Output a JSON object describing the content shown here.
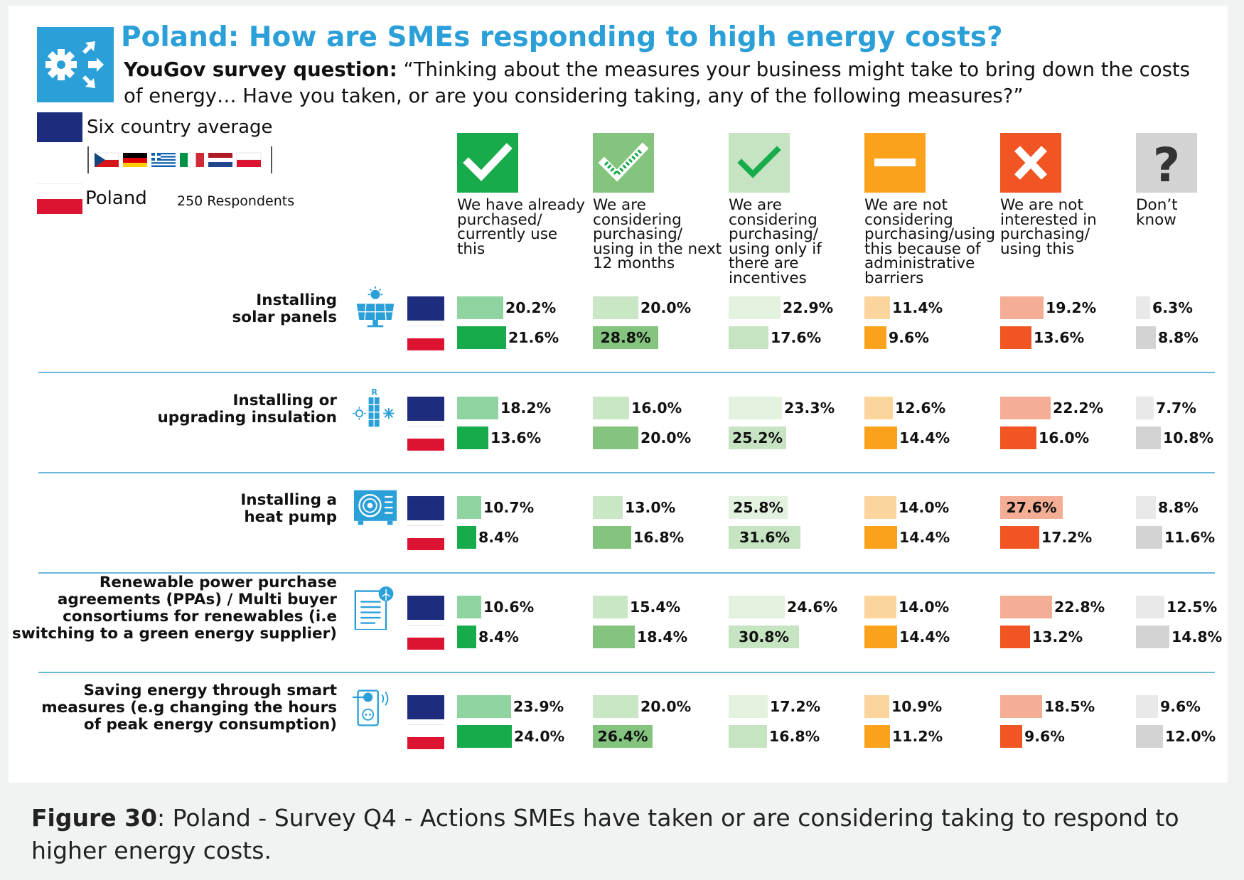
{
  "title": "Poland: How are SMEs responding to high energy costs?",
  "subtitle_bold": "YouGov survey question:",
  "subtitle_text": "“Thinking about the measures your business might take to bring down the costs of energy… Have you taken, or are you considering taking, any of the following measures?”",
  "legend": {
    "average_label": "Six country average",
    "poland_label": "Poland",
    "respondents": "250 Respondents",
    "flags": [
      "Czech Republic",
      "Germany",
      "Greece",
      "Italy",
      "Netherlands",
      "Poland"
    ]
  },
  "colors": {
    "accent": "#2a9fd8",
    "eu_blue": "#1d2c7c",
    "pl_red": "#dc1431",
    "separator": "#6bb7d8"
  },
  "caption_bold": "Figure 30",
  "caption_text": ": Poland - Survey Q4 - Actions SMEs have taken or are considering taking to respond to higher energy costs.",
  "chart_data": {
    "type": "bar",
    "unit": "%",
    "columns": [
      {
        "key": "already",
        "label_lines": [
          "We have already",
          "purchased/",
          "currently use",
          "this"
        ],
        "icon": "check-icon",
        "avg_color": "#8fd3a0",
        "pl_color": "#18ab4b"
      },
      {
        "key": "next12",
        "label_lines": [
          "We are",
          "considering",
          "purchasing/",
          "using in the next",
          "12 months"
        ],
        "icon": "dotted-check-icon",
        "avg_color": "#c9e6c5",
        "pl_color": "#84c47e"
      },
      {
        "key": "incentives",
        "label_lines": [
          "We are",
          "considering",
          "purchasing/",
          "using only if",
          "there are",
          "incentives"
        ],
        "icon": "light-check-icon",
        "avg_color": "#e3f1df",
        "pl_color": "#c6e4c2"
      },
      {
        "key": "admin",
        "label_lines": [
          "We are not",
          "considering",
          "purchasing/using",
          "this because of",
          "administrative",
          "barriers"
        ],
        "icon": "minus-icon",
        "avg_color": "#fbd59c",
        "pl_color": "#faa21b"
      },
      {
        "key": "notinterested",
        "label_lines": [
          "We are not",
          "interested in",
          "purchasing/",
          "using this"
        ],
        "icon": "cross-icon",
        "avg_color": "#f4ae96",
        "pl_color": "#f05523"
      },
      {
        "key": "dontknow",
        "label_lines": [
          "Don’t",
          "know"
        ],
        "icon": "question-icon",
        "avg_color": "#e9e9e9",
        "pl_color": "#d3d3d3"
      }
    ],
    "series": [
      {
        "name": "Six country average"
      },
      {
        "name": "Poland"
      }
    ],
    "categories": [
      {
        "label_lines": [
          "Installing",
          "solar panels"
        ],
        "icon": "solar-panel-icon",
        "avg": [
          20.2,
          20.0,
          22.9,
          11.4,
          19.2,
          6.3
        ],
        "pl": [
          21.6,
          28.8,
          17.6,
          9.6,
          13.6,
          8.8
        ],
        "avg_text": [
          "20.2%",
          "20.0%",
          "22.9%",
          "11.4%",
          "19.2%",
          "6.3%"
        ],
        "pl_text": [
          "21.6%",
          "28.8%",
          "17.6%",
          "9.6%",
          "13.6%",
          "8.8%"
        ]
      },
      {
        "label_lines": [
          "Installing or",
          "upgrading insulation"
        ],
        "icon": "insulation-icon",
        "avg": [
          18.2,
          16.0,
          23.3,
          12.6,
          22.2,
          7.7
        ],
        "pl": [
          13.6,
          20.0,
          25.2,
          14.4,
          16.0,
          10.8
        ],
        "avg_text": [
          "18.2%",
          "16.0%",
          "23.3%",
          "12.6%",
          "22.2%",
          "7.7%"
        ],
        "pl_text": [
          "13.6%",
          "20.0%",
          "25.2%",
          "14.4%",
          "16.0%",
          "10.8%"
        ]
      },
      {
        "label_lines": [
          "Installing a",
          "heat pump"
        ],
        "icon": "heat-pump-icon",
        "avg": [
          10.7,
          13.0,
          25.8,
          14.0,
          27.6,
          8.8
        ],
        "pl": [
          8.4,
          16.8,
          31.6,
          14.4,
          17.2,
          11.6
        ],
        "avg_text": [
          "10.7%",
          "13.0%",
          "25.8%",
          "14.0%",
          "27.6%",
          "8.8%"
        ],
        "pl_text": [
          "8.4%",
          "16.8%",
          "31.6%",
          "14.4%",
          "17.2%",
          "11.6%"
        ]
      },
      {
        "label_lines": [
          "Renewable power purchase",
          "agreements (PPAs) / Multi buyer",
          "consortiums for renewables (i.e",
          "switching to a green energy supplier)"
        ],
        "icon": "ppa-document-icon",
        "avg": [
          10.6,
          15.4,
          24.6,
          14.0,
          22.8,
          12.5
        ],
        "pl": [
          8.4,
          18.4,
          30.8,
          14.4,
          13.2,
          14.8
        ],
        "avg_text": [
          "10.6%",
          "15.4%",
          "24.6%",
          "14.0%",
          "22.8%",
          "12.5%"
        ],
        "pl_text": [
          "8.4%",
          "18.4%",
          "30.8%",
          "14.4%",
          "13.2%",
          "14.8%"
        ]
      },
      {
        "label_lines": [
          "Saving energy through smart",
          "measures (e.g changing the hours",
          "of peak energy consumption)"
        ],
        "icon": "smart-plug-icon",
        "avg": [
          23.9,
          20.0,
          17.2,
          10.9,
          18.5,
          9.6
        ],
        "pl": [
          24.0,
          26.4,
          16.8,
          11.2,
          9.6,
          12.0
        ],
        "avg_text": [
          "23.9%",
          "20.0%",
          "17.2%",
          "10.9%",
          "18.5%",
          "9.6%"
        ],
        "pl_text": [
          "24.0%",
          "26.4%",
          "16.8%",
          "11.2%",
          "9.6%",
          "12.0%"
        ]
      }
    ]
  }
}
